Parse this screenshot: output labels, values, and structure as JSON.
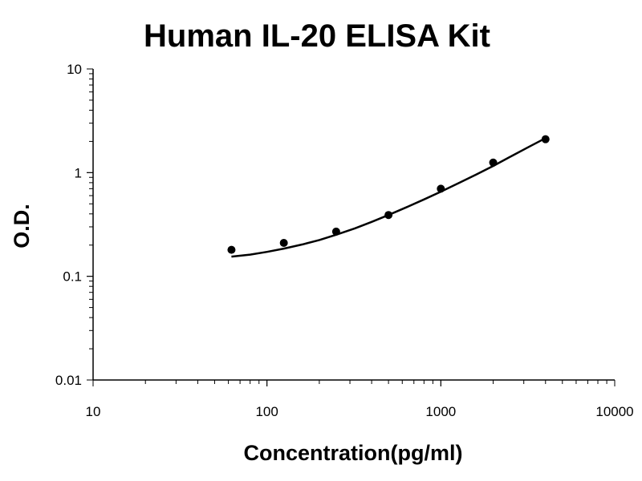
{
  "chart_data": {
    "type": "scatter",
    "title": "Human IL-20 ELISA Kit",
    "xlabel": "Concentration(pg/ml)",
    "ylabel": "O.D.",
    "x_scale": "log",
    "y_scale": "log",
    "xlim": [
      10,
      10000
    ],
    "ylim": [
      0.01,
      10
    ],
    "x_ticks": [
      "10",
      "100",
      "1000",
      "10000"
    ],
    "y_ticks": [
      "0.01",
      "0.1",
      "1",
      "10"
    ],
    "grid": false,
    "legend": "none",
    "series": [
      {
        "x": [
          62.5,
          125,
          250,
          500,
          1000,
          2000,
          4000
        ],
        "y": [
          0.18,
          0.21,
          0.27,
          0.39,
          0.7,
          1.25,
          2.1
        ],
        "marker": "circle",
        "color": "#000000"
      }
    ],
    "fit_curve": {
      "type": "polynomial",
      "color": "#000000",
      "x": [
        62.5,
        80,
        100,
        125,
        160,
        200,
        250,
        320,
        400,
        500,
        640,
        800,
        1000,
        1280,
        1600,
        2000,
        2560,
        3200,
        4000
      ],
      "y": [
        0.155,
        0.162,
        0.172,
        0.185,
        0.203,
        0.224,
        0.252,
        0.29,
        0.335,
        0.39,
        0.466,
        0.551,
        0.655,
        0.8,
        0.96,
        1.16,
        1.45,
        1.77,
        2.15
      ]
    }
  }
}
